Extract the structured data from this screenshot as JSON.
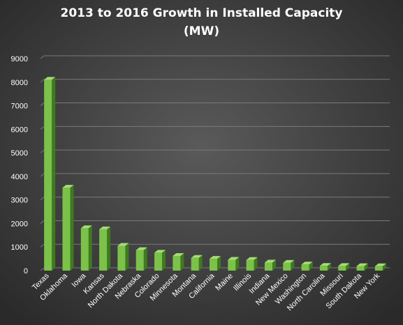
{
  "chart_data": {
    "type": "bar",
    "title_line1": "2013 to 2016 Growth in Installed Capacity",
    "title_line2": "(MW)",
    "categories": [
      "Texas",
      "Oklahoma",
      "Iowa",
      "Kansas",
      "North Dakota",
      "Nebraska",
      "Colorado",
      "Minnesota",
      "Montana",
      "California",
      "Maine",
      "Illinois",
      "Indiana",
      "New Mexico",
      "Washington",
      "North Carolina",
      "Missouri",
      "South Dakota",
      "New York"
    ],
    "values": [
      8100,
      3520,
      1800,
      1750,
      1050,
      870,
      760,
      620,
      540,
      500,
      460,
      450,
      340,
      330,
      260,
      200,
      195,
      190,
      185
    ],
    "ylim": [
      0,
      9000
    ],
    "yticks": [
      "0",
      "1000",
      "2000",
      "3000",
      "4000",
      "5000",
      "6000",
      "7000",
      "8000",
      "9000"
    ],
    "grid": true,
    "colors": {
      "bar_front": "#7cc24a",
      "bar_side": "#3e7a1e",
      "bar_top": "#a6dc76",
      "background_center": "#5a5a5a",
      "background_edge": "#2a2a2a",
      "gridline": "#7a7a7a"
    }
  }
}
